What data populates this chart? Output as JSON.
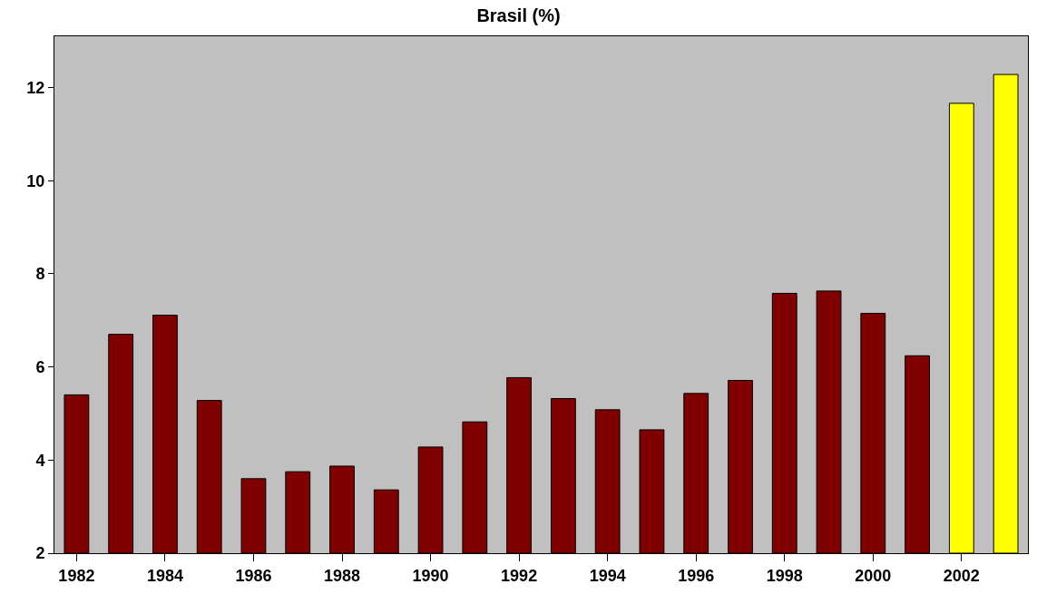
{
  "chart_data": {
    "type": "bar",
    "title": "Brasil (%)",
    "x": [
      1982,
      1983,
      1984,
      1985,
      1986,
      1987,
      1988,
      1989,
      1990,
      1991,
      1992,
      1993,
      1994,
      1995,
      1996,
      1997,
      1998,
      1999,
      2000,
      2001,
      2002,
      2003
    ],
    "values": [
      5.4,
      6.7,
      7.11,
      5.28,
      3.6,
      3.75,
      3.87,
      3.36,
      4.28,
      4.82,
      5.77,
      5.32,
      5.08,
      4.65,
      5.43,
      5.71,
      7.58,
      7.63,
      7.15,
      6.24,
      11.66,
      12.28
    ],
    "colors": [
      "#800000",
      "#800000",
      "#800000",
      "#800000",
      "#800000",
      "#800000",
      "#800000",
      "#800000",
      "#800000",
      "#800000",
      "#800000",
      "#800000",
      "#800000",
      "#800000",
      "#800000",
      "#800000",
      "#800000",
      "#800000",
      "#800000",
      "#800000",
      "#ffff00",
      "#ffff00"
    ],
    "xlim": [
      1981.5,
      2003.5
    ],
    "xticks": [
      1982,
      1984,
      1986,
      1988,
      1990,
      1992,
      1994,
      1996,
      1998,
      2000,
      2002
    ],
    "ylim": [
      2,
      13.1
    ],
    "yticks": [
      2,
      4,
      6,
      8,
      10,
      12
    ],
    "grid": false
  }
}
